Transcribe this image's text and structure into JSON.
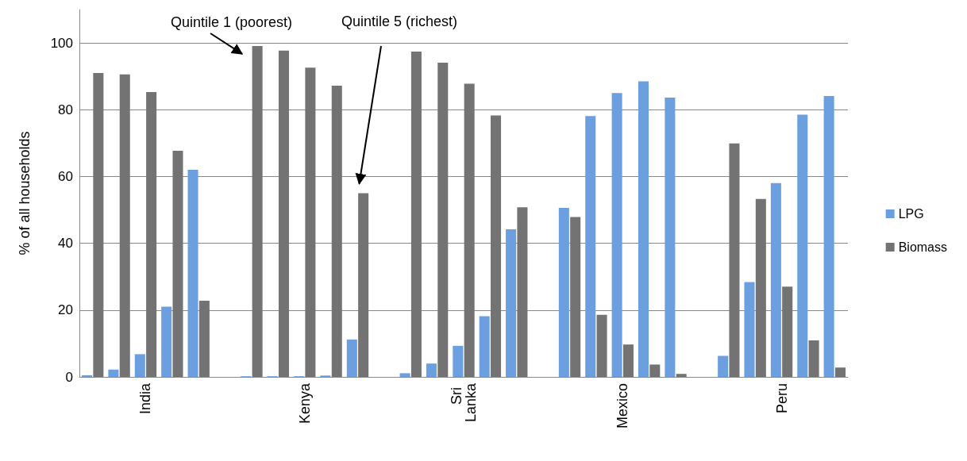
{
  "chart_data": {
    "type": "bar",
    "ylabel": "% of all households",
    "categories": [
      null,
      null,
      "India",
      null,
      null,
      null,
      null,
      null,
      "Kenya",
      null,
      null,
      null,
      null,
      null,
      "Sri Lanka",
      null,
      null,
      null,
      null,
      null,
      "Mexico",
      null,
      null,
      null,
      null,
      null,
      "Peru",
      null,
      null
    ],
    "series": [
      {
        "name": "LPG",
        "color": "#6c9fdf",
        "values": [
          0.5,
          2.2,
          6.8,
          21,
          62,
          null,
          0.2,
          0.2,
          0.2,
          0.4,
          11.2,
          null,
          1.1,
          4,
          9.3,
          18.2,
          44.2,
          null,
          50.6,
          78.1,
          85,
          88.5,
          83.6,
          null,
          6.3,
          28.4,
          58,
          78.5,
          84.1
        ]
      },
      {
        "name": "Biomass",
        "color": "#737373",
        "values": [
          91,
          90.6,
          85.3,
          67.7,
          22.8,
          null,
          99.1,
          97.7,
          92.6,
          87.2,
          55,
          null,
          97.4,
          94.1,
          87.8,
          78.3,
          50.8,
          null,
          47.9,
          18.6,
          9.7,
          3.7,
          0.9,
          null,
          69.9,
          53.3,
          27,
          10.9,
          2.8
        ]
      }
    ],
    "ylim": [
      0,
      110
    ],
    "yticks": [
      0,
      20,
      40,
      60,
      80,
      100
    ],
    "grid": "y",
    "legend": "right",
    "annotations": [
      "Quintile 1 (poorest)",
      "Quintile 5 (richest)"
    ]
  }
}
